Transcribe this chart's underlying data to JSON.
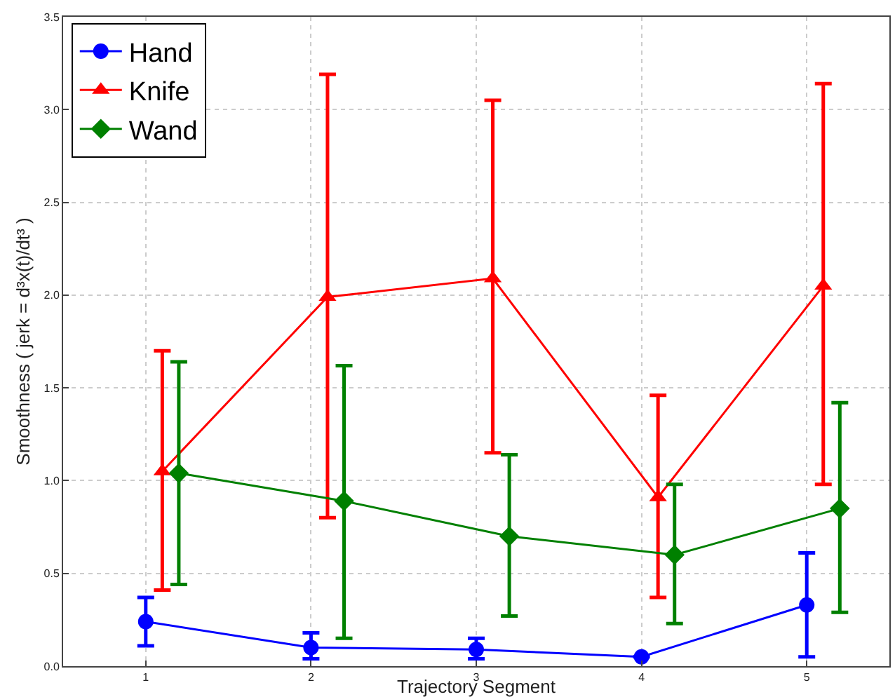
{
  "chart_data": {
    "type": "line",
    "xlabel": "Trajectory Segment",
    "ylabel": "Smoothness ( jerk = d³x(t)/dt³ )",
    "xlim": [
      0.5,
      5.5
    ],
    "xticks": [
      1,
      2,
      3,
      4,
      5
    ],
    "ylim": [
      0,
      3.5
    ],
    "yticks": [
      {
        "value": 0,
        "label": "0.0"
      },
      {
        "value": 0.5,
        "label": "0.5"
      },
      {
        "value": 1,
        "label": "1.0"
      },
      {
        "value": 1.5,
        "label": "1.5"
      },
      {
        "value": 2,
        "label": "2.0"
      },
      {
        "value": 2.5,
        "label": "2.5"
      },
      {
        "value": 3,
        "label": "3.0"
      },
      {
        "value": 3.5,
        "label": "3.5"
      }
    ],
    "grid": true,
    "legend": "top left",
    "line_style": "solid",
    "series": [
      {
        "name": "Hand",
        "color": "#0000ff",
        "marker": "circle",
        "x": [
          1,
          2,
          3,
          4,
          5
        ],
        "values": [
          0.24,
          0.1,
          0.09,
          0.05,
          0.33
        ],
        "errors": [
          [
            0.11,
            0.37
          ],
          [
            0.04,
            0.18
          ],
          [
            0.04,
            0.15
          ],
          null,
          [
            0.05,
            0.61
          ]
        ]
      },
      {
        "name": "Knife",
        "color": "#ff0000",
        "marker": "triangle",
        "x": [
          1.1,
          2.1,
          3.1,
          4.1,
          5.1
        ],
        "values": [
          1.05,
          1.99,
          2.09,
          0.91,
          2.05
        ],
        "errors": [
          [
            0.41,
            1.7
          ],
          [
            0.8,
            3.19
          ],
          [
            1.15,
            3.05
          ],
          [
            0.37,
            1.46
          ],
          [
            0.98,
            3.14
          ]
        ]
      },
      {
        "name": "Wand",
        "color": "#008000",
        "marker": "diamond",
        "x": [
          1.2,
          2.2,
          3.2,
          4.2,
          5.2
        ],
        "values": [
          1.04,
          0.89,
          0.7,
          0.6,
          0.85
        ],
        "errors": [
          [
            0.44,
            1.64
          ],
          [
            0.15,
            1.62
          ],
          [
            0.27,
            1.14
          ],
          [
            0.23,
            0.98
          ],
          [
            0.29,
            1.42
          ]
        ]
      }
    ]
  }
}
